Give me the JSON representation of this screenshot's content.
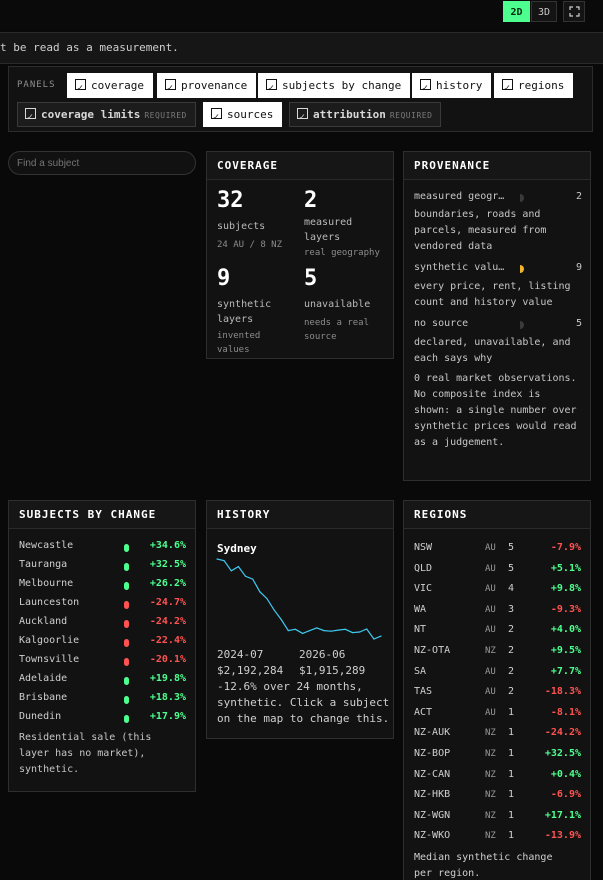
{
  "view_toggle": {
    "btn_2d": "2D",
    "btn_3d": "3D"
  },
  "notice": "t be read as a measurement.",
  "panels": {
    "label": "PANELS",
    "required_tag": "REQUIRED",
    "chips": {
      "coverage": "coverage",
      "provenance": "provenance",
      "subjects_by_change": "subjects by change",
      "history": "history",
      "regions": "regions",
      "coverage_limits": "coverage limits",
      "sources": "sources",
      "attribution": "attribution"
    }
  },
  "search": {
    "placeholder": "Find a subject"
  },
  "coverage": {
    "title": "COVERAGE",
    "subjects": {
      "value": "32",
      "label": "subjects",
      "sub": "24 AU / 8 NZ"
    },
    "measured": {
      "value": "2",
      "label": "measured layers",
      "sub": "real geography"
    },
    "synthetic": {
      "value": "9",
      "label": "synthetic layers",
      "sub": "invented values"
    },
    "unavailable": {
      "value": "5",
      "label": "unavailable",
      "sub": "needs a real source"
    }
  },
  "provenance": {
    "title": "PROVENANCE",
    "items": [
      {
        "name": "measured geogr…",
        "count": "2",
        "color": "#3a3a3a",
        "desc": "boundaries, roads and parcels, measured from vendored data"
      },
      {
        "name": "synthetic valu…",
        "count": "9",
        "color": "#f0b429",
        "desc": "every price, rent, listing count and history value"
      },
      {
        "name": "no source",
        "count": "5",
        "color": "#3a3a3a",
        "desc": "declared, unavailable, and each says why"
      }
    ],
    "note": "0 real market observations. No composite index is shown: a single number over synthetic prices would read as a judgement."
  },
  "subjects_by_change": {
    "title": "SUBJECTS BY CHANGE",
    "rows": [
      {
        "name": "Newcastle",
        "value": "+34.6%",
        "dir": "pos"
      },
      {
        "name": "Tauranga",
        "value": "+32.5%",
        "dir": "pos"
      },
      {
        "name": "Melbourne",
        "value": "+26.2%",
        "dir": "pos"
      },
      {
        "name": "Launceston",
        "value": "-24.7%",
        "dir": "neg"
      },
      {
        "name": "Auckland",
        "value": "-24.2%",
        "dir": "neg"
      },
      {
        "name": "Kalgoorlie",
        "value": "-22.4%",
        "dir": "neg"
      },
      {
        "name": "Townsville",
        "value": "-20.1%",
        "dir": "neg"
      },
      {
        "name": "Adelaide",
        "value": "+19.8%",
        "dir": "pos"
      },
      {
        "name": "Brisbane",
        "value": "+18.3%",
        "dir": "pos"
      },
      {
        "name": "Dunedin",
        "value": "+17.9%",
        "dir": "pos"
      }
    ],
    "note": "Residential sale (this layer has no market), synthetic."
  },
  "history": {
    "title": "HISTORY",
    "subject": "Sydney",
    "start_date": "2024-07",
    "end_date": "2026-06",
    "start_value": "$2,192,284",
    "end_value": "$1,915,289",
    "summary_line1": "-12.6% over 24 months,",
    "summary_line2": "synthetic. Click a subject",
    "summary_line3": "on the map to change this.",
    "line_color": "#3ec9f0"
  },
  "chart_data": {
    "type": "line",
    "title": "Sydney",
    "xlabel": "",
    "ylabel": "",
    "x": [
      "2024-07",
      "2024-08",
      "2024-09",
      "2024-10",
      "2024-11",
      "2024-12",
      "2025-01",
      "2025-02",
      "2025-03",
      "2025-04",
      "2025-05",
      "2025-06",
      "2025-07",
      "2025-08",
      "2025-09",
      "2025-10",
      "2025-11",
      "2025-12",
      "2026-01",
      "2026-02",
      "2026-03",
      "2026-04",
      "2026-05",
      "2026-06"
    ],
    "series": [
      {
        "values": [
          2192284,
          2186000,
          2150000,
          2165000,
          2130000,
          2120000,
          2075000,
          2050000,
          2010000,
          1975000,
          1935000,
          1940000,
          1925000,
          1935000,
          1945000,
          1935000,
          1933000,
          1937000,
          1940000,
          1928000,
          1930000,
          1941000,
          1905000,
          1915289
        ]
      }
    ],
    "grid": false
  },
  "regions": {
    "title": "REGIONS",
    "rows": [
      {
        "name": "NSW",
        "cc": "AU",
        "n": "5",
        "value": "-7.9%",
        "dir": "neg"
      },
      {
        "name": "QLD",
        "cc": "AU",
        "n": "5",
        "value": "+5.1%",
        "dir": "pos"
      },
      {
        "name": "VIC",
        "cc": "AU",
        "n": "4",
        "value": "+9.8%",
        "dir": "pos"
      },
      {
        "name": "WA",
        "cc": "AU",
        "n": "3",
        "value": "-9.3%",
        "dir": "neg"
      },
      {
        "name": "NT",
        "cc": "AU",
        "n": "2",
        "value": "+4.0%",
        "dir": "pos"
      },
      {
        "name": "NZ-OTA",
        "cc": "NZ",
        "n": "2",
        "value": "+9.5%",
        "dir": "pos"
      },
      {
        "name": "SA",
        "cc": "AU",
        "n": "2",
        "value": "+7.7%",
        "dir": "pos"
      },
      {
        "name": "TAS",
        "cc": "AU",
        "n": "2",
        "value": "-18.3%",
        "dir": "neg"
      },
      {
        "name": "ACT",
        "cc": "AU",
        "n": "1",
        "value": "-8.1%",
        "dir": "neg"
      },
      {
        "name": "NZ-AUK",
        "cc": "NZ",
        "n": "1",
        "value": "-24.2%",
        "dir": "neg"
      },
      {
        "name": "NZ-BOP",
        "cc": "NZ",
        "n": "1",
        "value": "+32.5%",
        "dir": "pos"
      },
      {
        "name": "NZ-CAN",
        "cc": "NZ",
        "n": "1",
        "value": "+0.4%",
        "dir": "pos"
      },
      {
        "name": "NZ-HKB",
        "cc": "NZ",
        "n": "1",
        "value": "-6.9%",
        "dir": "neg"
      },
      {
        "name": "NZ-WGN",
        "cc": "NZ",
        "n": "1",
        "value": "+17.1%",
        "dir": "pos"
      },
      {
        "name": "NZ-WKO",
        "cc": "NZ",
        "n": "1",
        "value": "-13.9%",
        "dir": "neg"
      }
    ],
    "note_line1": "Median synthetic change",
    "note_line2": "per region."
  },
  "colors": {
    "accent": "#4dff8f",
    "positive": "#4dff8f",
    "negative": "#ff5252"
  }
}
